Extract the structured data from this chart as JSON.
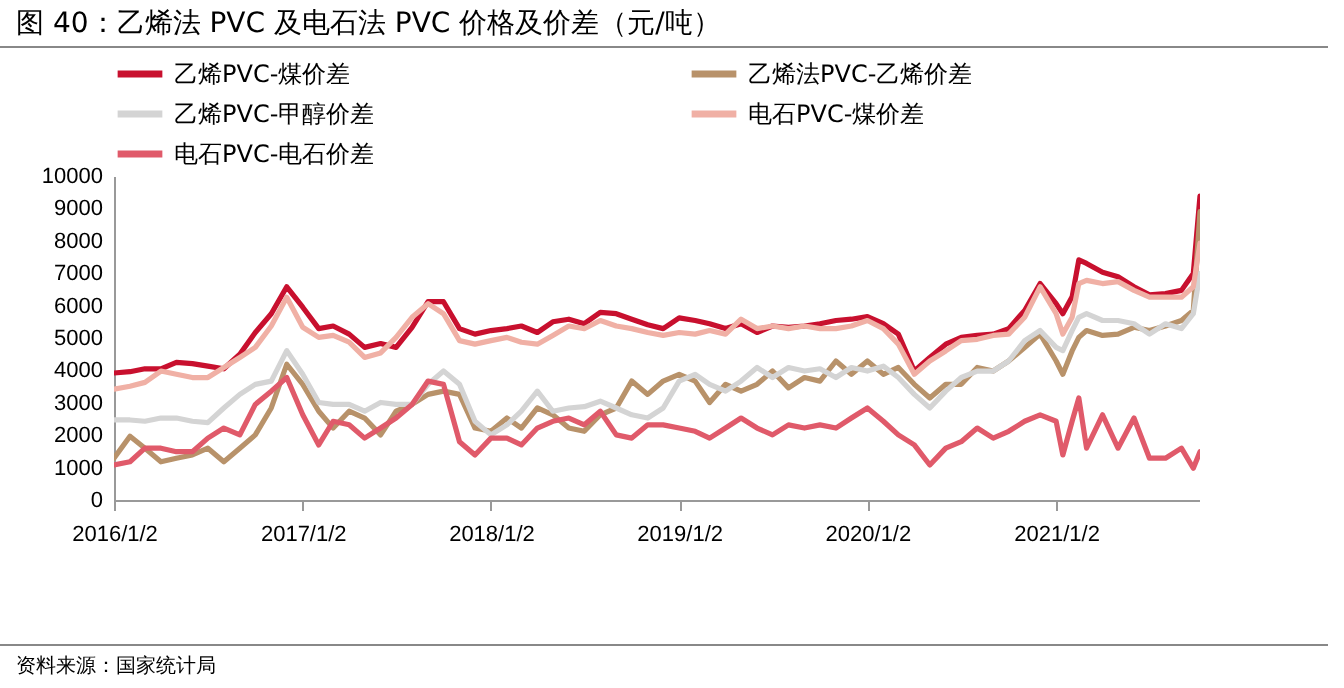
{
  "chart_data": {
    "type": "line",
    "title": "图 40：乙烯法 PVC 及电石法 PVC 价格及价差（元/吨）",
    "annotations": [
      "资料来源：国家统计局"
    ],
    "x": [
      "2016-01-02",
      "2016-02-02",
      "2016-03-02",
      "2016-04-02",
      "2016-05-02",
      "2016-06-02",
      "2016-07-02",
      "2016-08-02",
      "2016-09-02",
      "2016-10-02",
      "2016-11-02",
      "2016-12-02",
      "2017-01-02",
      "2017-02-02",
      "2017-03-02",
      "2017-04-02",
      "2017-05-02",
      "2017-06-02",
      "2017-07-02",
      "2017-08-02",
      "2017-09-02",
      "2017-10-02",
      "2017-11-02",
      "2017-12-02",
      "2018-01-02",
      "2018-02-02",
      "2018-03-02",
      "2018-04-02",
      "2018-05-02",
      "2018-06-02",
      "2018-07-02",
      "2018-08-02",
      "2018-09-02",
      "2018-10-02",
      "2018-11-02",
      "2018-12-02",
      "2019-01-02",
      "2019-02-02",
      "2019-03-02",
      "2019-04-02",
      "2019-05-02",
      "2019-06-02",
      "2019-07-02",
      "2019-08-02",
      "2019-09-02",
      "2019-10-02",
      "2019-11-02",
      "2019-12-02",
      "2020-01-02",
      "2020-02-02",
      "2020-03-02",
      "2020-04-02",
      "2020-05-02",
      "2020-06-02",
      "2020-07-02",
      "2020-08-02",
      "2020-09-02",
      "2020-10-02",
      "2020-11-02",
      "2020-12-02",
      "2021-01-02",
      "2021-01-15",
      "2021-02-02",
      "2021-02-15",
      "2021-03-02",
      "2021-04-02",
      "2021-05-02",
      "2021-06-02",
      "2021-07-02",
      "2021-08-02",
      "2021-09-02",
      "2021-09-25",
      "2021-10-08"
    ],
    "series": [
      {
        "name": "乙烯PVC-煤价差",
        "color": "#c8102e",
        "values": [
          3920,
          3960,
          4050,
          4050,
          4250,
          4210,
          4130,
          4050,
          4500,
          5170,
          5750,
          6580,
          5950,
          5290,
          5370,
          5120,
          4710,
          4830,
          4710,
          5330,
          6120,
          6120,
          5290,
          5120,
          5230,
          5290,
          5370,
          5170,
          5500,
          5580,
          5440,
          5790,
          5750,
          5580,
          5410,
          5290,
          5620,
          5540,
          5440,
          5290,
          5440,
          5170,
          5370,
          5330,
          5370,
          5440,
          5540,
          5580,
          5660,
          5440,
          5120,
          3980,
          4400,
          4810,
          5020,
          5080,
          5120,
          5290,
          5850,
          6680,
          6060,
          5750,
          6270,
          7410,
          7300,
          7030,
          6890,
          6580,
          6330,
          6370,
          6470,
          6990,
          9380
        ]
      },
      {
        "name": "乙烯法PVC-乙烯价差",
        "color": "#b8926a",
        "values": [
          1290,
          1970,
          1600,
          1180,
          1290,
          1390,
          1600,
          1180,
          1600,
          2010,
          2840,
          4190,
          3570,
          2740,
          2220,
          2740,
          2530,
          2010,
          2740,
          2950,
          3260,
          3360,
          3260,
          2220,
          2120,
          2530,
          2220,
          2840,
          2630,
          2220,
          2120,
          2630,
          2840,
          3670,
          3260,
          3670,
          3880,
          3670,
          3010,
          3570,
          3360,
          3570,
          3980,
          3460,
          3780,
          3670,
          4290,
          3880,
          4290,
          3880,
          4090,
          3570,
          3150,
          3570,
          3570,
          4090,
          3980,
          4290,
          4710,
          5120,
          4290,
          3880,
          4600,
          5020,
          5230,
          5080,
          5120,
          5330,
          5230,
          5370,
          5540,
          5850,
          8900
        ]
      },
      {
        "name": "乙烯PVC-甲醇价差",
        "color": "#d4d4d4",
        "values": [
          2470,
          2470,
          2430,
          2530,
          2530,
          2430,
          2390,
          2840,
          3260,
          3570,
          3670,
          4610,
          3880,
          3010,
          2950,
          2950,
          2740,
          3010,
          2950,
          2950,
          3570,
          3980,
          3570,
          2430,
          2010,
          2320,
          2740,
          3360,
          2740,
          2840,
          2880,
          3050,
          2840,
          2630,
          2530,
          2840,
          3670,
          3880,
          3570,
          3360,
          3670,
          4090,
          3780,
          4090,
          3980,
          4050,
          3780,
          4090,
          3980,
          4130,
          3780,
          3260,
          2840,
          3360,
          3780,
          3980,
          3980,
          4290,
          4920,
          5230,
          4710,
          4610,
          5230,
          5640,
          5750,
          5540,
          5540,
          5440,
          5120,
          5440,
          5290,
          5750,
          6990
        ]
      },
      {
        "name": "电石PVC-煤价差",
        "color": "#f0b0a5",
        "values": [
          3420,
          3510,
          3630,
          3980,
          3880,
          3780,
          3780,
          4090,
          4400,
          4710,
          5370,
          6260,
          5330,
          5020,
          5080,
          4870,
          4400,
          4540,
          5020,
          5640,
          6060,
          5750,
          4920,
          4810,
          4920,
          5020,
          4870,
          4810,
          5080,
          5370,
          5290,
          5540,
          5370,
          5290,
          5170,
          5080,
          5170,
          5120,
          5230,
          5120,
          5580,
          5290,
          5370,
          5290,
          5370,
          5290,
          5290,
          5370,
          5540,
          5290,
          4810,
          3880,
          4290,
          4600,
          4920,
          4960,
          5080,
          5120,
          5640,
          6580,
          5750,
          5120,
          5640,
          6680,
          6780,
          6680,
          6740,
          6470,
          6260,
          6260,
          6260,
          6580,
          7930
        ]
      },
      {
        "name": "电石PVC-电石价差",
        "color": "#e05a6a",
        "values": [
          1080,
          1180,
          1600,
          1600,
          1490,
          1490,
          1910,
          2220,
          2010,
          2950,
          3360,
          3780,
          2630,
          1700,
          2430,
          2320,
          1910,
          2220,
          2530,
          2950,
          3670,
          3570,
          1800,
          1390,
          1910,
          1910,
          1700,
          2220,
          2430,
          2530,
          2320,
          2740,
          2010,
          1910,
          2320,
          2320,
          2220,
          2120,
          1910,
          2220,
          2530,
          2220,
          2010,
          2320,
          2220,
          2320,
          2220,
          2530,
          2840,
          2430,
          2010,
          1700,
          1080,
          1600,
          1800,
          2220,
          1910,
          2120,
          2430,
          2630,
          2430,
          1390,
          2430,
          3150,
          1600,
          2630,
          1600,
          2530,
          1290,
          1290,
          1600,
          980,
          1490
        ]
      }
    ],
    "xlim": [
      "2016-01-02",
      "2021-10-08"
    ],
    "xticks": [
      {
        "value": "2016-01-02",
        "label": "2016/1/2"
      },
      {
        "value": "2017-01-02",
        "label": "2017/1/2"
      },
      {
        "value": "2018-01-02",
        "label": "2018/1/2"
      },
      {
        "value": "2019-01-02",
        "label": "2019/1/2"
      },
      {
        "value": "2020-01-02",
        "label": "2020/1/2"
      },
      {
        "value": "2021-01-02",
        "label": "2021/1/2"
      }
    ],
    "ylim": [
      0,
      10000
    ],
    "yticks": [
      0,
      1000,
      2000,
      3000,
      4000,
      5000,
      6000,
      7000,
      8000,
      9000,
      10000
    ],
    "grid": false,
    "legend": "top",
    "marker": "none",
    "line_style": "solid"
  }
}
